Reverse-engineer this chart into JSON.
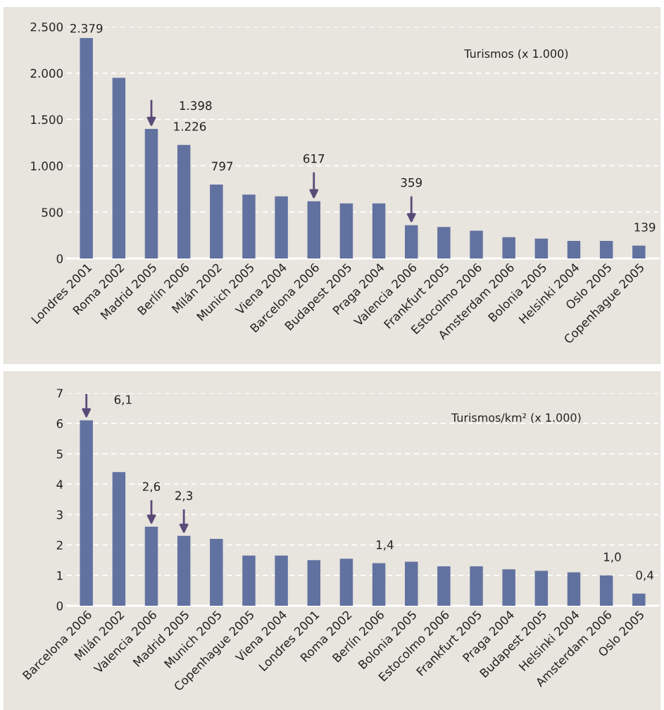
{
  "chart_data": [
    {
      "type": "bar",
      "categories": [
        "Londres 2001",
        "Roma 2002",
        "Madrid 2005",
        "Berlín 2006",
        "Milán 2002",
        "Munich 2005",
        "Viena 2004",
        "Barcelona 2006",
        "Budapest 2005",
        "Praga 2004",
        "Valencia 2006",
        "Frankfurt 2005",
        "Estocolmo 2006",
        "Amsterdam 2006",
        "Bolonia 2005",
        "Helsinki 2004",
        "Oslo 2005",
        "Copenhague 2005"
      ],
      "values": [
        2379,
        1950,
        1398,
        1226,
        797,
        690,
        670,
        617,
        595,
        595,
        359,
        340,
        300,
        230,
        215,
        190,
        190,
        139
      ],
      "value_labels": [
        "2.379",
        null,
        null,
        "1.226",
        "797",
        null,
        null,
        null,
        null,
        null,
        null,
        null,
        null,
        null,
        null,
        null,
        null,
        "139"
      ],
      "color": "#6272a0",
      "ylim": [
        0,
        2500
      ],
      "yticks": [
        {
          "value": 0,
          "label": "0"
        },
        {
          "value": 500,
          "label": "500"
        },
        {
          "value": 1000,
          "label": "1.000"
        },
        {
          "value": 1500,
          "label": "1.500"
        },
        {
          "value": 2000,
          "label": "2.000"
        },
        {
          "value": 2500,
          "label": "2.500"
        }
      ],
      "grid": "y",
      "annotations": [
        "Turismos (x 1.000)",
        {
          "text": "1.398",
          "x": "Madrid 2005",
          "y": 1398
        },
        {
          "text": "617",
          "x": "Barcelona 2006",
          "y": 617
        },
        {
          "text": "359",
          "x": "Valencia 2006",
          "y": 359
        }
      ]
    },
    {
      "type": "bar",
      "categories": [
        "Barcelona 2006",
        "Milán 2002",
        "Valencia 2006",
        "Madrid 2005",
        "Munich 2005",
        "Copenhague 2005",
        "Viena 2004",
        "Londres 2001",
        "Roma 2002",
        "Berlín 2006",
        "Bolonia 2005",
        "Estocolmo 2006",
        "Frankfurt 2005",
        "Praga 2004",
        "Budapest 2005",
        "Helsinki 2004",
        "Amsterdam 2006",
        "Oslo 2005"
      ],
      "values": [
        6.1,
        4.4,
        2.6,
        2.3,
        2.2,
        1.65,
        1.65,
        1.5,
        1.55,
        1.4,
        1.45,
        1.3,
        1.3,
        1.2,
        1.15,
        1.1,
        1.0,
        0.4
      ],
      "value_labels": [
        null,
        null,
        null,
        null,
        null,
        null,
        null,
        null,
        null,
        "1,4",
        null,
        null,
        null,
        null,
        null,
        null,
        "1,0",
        "0,4"
      ],
      "color": "#6272a0",
      "ylim": [
        0,
        7
      ],
      "yticks": [
        0,
        1,
        2,
        3,
        4,
        5,
        6,
        7
      ],
      "grid": "y",
      "annotations": [
        "Turismos/km² (x 1.000)",
        {
          "text": "6,1",
          "x": "Barcelona 2006",
          "y": 6.1
        },
        {
          "text": "2,6",
          "x": "Valencia 2006",
          "y": 2.6
        },
        {
          "text": "2,3",
          "x": "Madrid 2005",
          "y": 2.3
        }
      ]
    }
  ]
}
